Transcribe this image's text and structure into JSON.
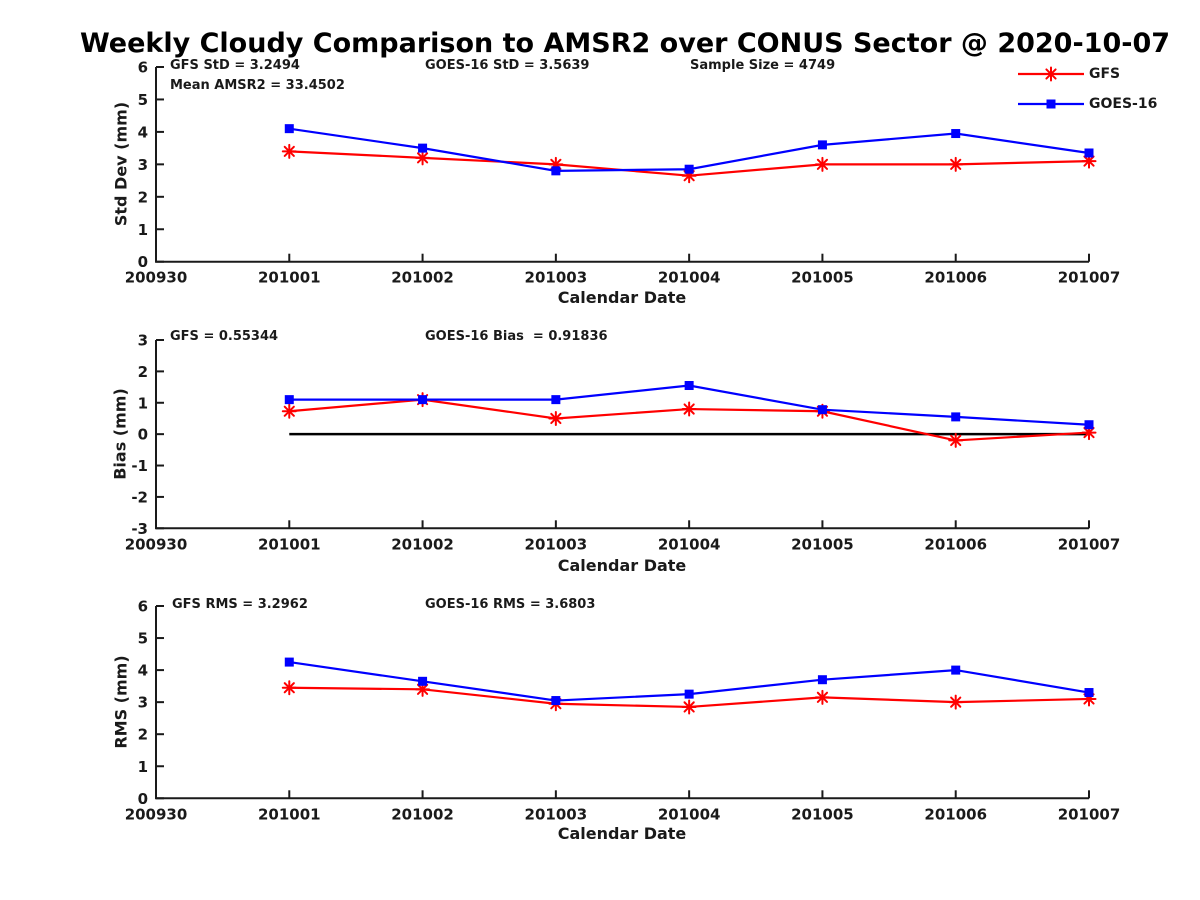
{
  "title": "Weekly Cloudy Comparison to AMSR2 over CONUS Sector @ 2020-10-07",
  "colors": {
    "gfs": "#ff0000",
    "goes16": "#0000ff",
    "axis": "#1a1a1a",
    "zero_line": "#000000"
  },
  "legend": {
    "items": [
      {
        "label": "GFS",
        "color": "#ff0000",
        "marker": "asterisk"
      },
      {
        "label": "GOES-16",
        "color": "#0000ff",
        "marker": "square"
      }
    ]
  },
  "chart_data": [
    {
      "type": "line",
      "ylabel": "Std Dev (mm)",
      "xlabel": "Calendar Date",
      "ylim": [
        0,
        6
      ],
      "yticks": [
        0,
        1,
        2,
        3,
        4,
        5,
        6
      ],
      "x_tick_labels": [
        "200930",
        "201001",
        "201002",
        "201003",
        "201004",
        "201005",
        "201006",
        "201007"
      ],
      "x": [
        "201001",
        "201002",
        "201003",
        "201004",
        "201005",
        "201006",
        "201007"
      ],
      "series": [
        {
          "name": "GFS",
          "color": "#ff0000",
          "marker": "asterisk",
          "values": [
            3.4,
            3.2,
            3.0,
            2.65,
            3.0,
            3.0,
            3.1
          ]
        },
        {
          "name": "GOES-16",
          "color": "#0000ff",
          "marker": "square",
          "values": [
            4.1,
            3.5,
            2.8,
            2.85,
            3.6,
            3.95,
            3.35
          ]
        }
      ],
      "zero_line": false,
      "annotations": [
        {
          "text": "GFS StD = 3.2494"
        },
        {
          "text": "Mean AMSR2 = 33.4502"
        },
        {
          "text": "GOES-16 StD = 3.5639"
        },
        {
          "text": "Sample Size = 4749"
        }
      ]
    },
    {
      "type": "line",
      "ylabel": "Bias (mm)",
      "xlabel": "Calendar Date",
      "ylim": [
        -3,
        3
      ],
      "yticks": [
        -3,
        -2,
        -1,
        0,
        1,
        2,
        3
      ],
      "x_tick_labels": [
        "200930",
        "201001",
        "201002",
        "201003",
        "201004",
        "201005",
        "201006",
        "201007"
      ],
      "x": [
        "201001",
        "201002",
        "201003",
        "201004",
        "201005",
        "201006",
        "201007"
      ],
      "series": [
        {
          "name": "GFS",
          "color": "#ff0000",
          "marker": "asterisk",
          "values": [
            0.73,
            1.1,
            0.5,
            0.8,
            0.73,
            -0.2,
            0.05
          ]
        },
        {
          "name": "GOES-16",
          "color": "#0000ff",
          "marker": "square",
          "values": [
            1.1,
            1.1,
            1.1,
            1.55,
            0.78,
            0.55,
            0.3
          ]
        }
      ],
      "zero_line": true,
      "annotations": [
        {
          "text": "GFS = 0.55344"
        },
        {
          "text": "GOES-16 Bias  = 0.91836"
        }
      ]
    },
    {
      "type": "line",
      "ylabel": "RMS (mm)",
      "xlabel": "Calendar Date",
      "ylim": [
        0,
        6
      ],
      "yticks": [
        0,
        1,
        2,
        3,
        4,
        5,
        6
      ],
      "x_tick_labels": [
        "200930",
        "201001",
        "201002",
        "201003",
        "201004",
        "201005",
        "201006",
        "201007"
      ],
      "x": [
        "201001",
        "201002",
        "201003",
        "201004",
        "201005",
        "201006",
        "201007"
      ],
      "series": [
        {
          "name": "GFS",
          "color": "#ff0000",
          "marker": "asterisk",
          "values": [
            3.45,
            3.4,
            2.95,
            2.85,
            3.15,
            3.0,
            3.1
          ]
        },
        {
          "name": "GOES-16",
          "color": "#0000ff",
          "marker": "square",
          "values": [
            4.25,
            3.65,
            3.05,
            3.25,
            3.7,
            4.0,
            3.3
          ]
        }
      ],
      "zero_line": false,
      "annotations": [
        {
          "text": "GFS RMS = 3.2962"
        },
        {
          "text": "GOES-16 RMS = 3.6803"
        }
      ]
    }
  ]
}
